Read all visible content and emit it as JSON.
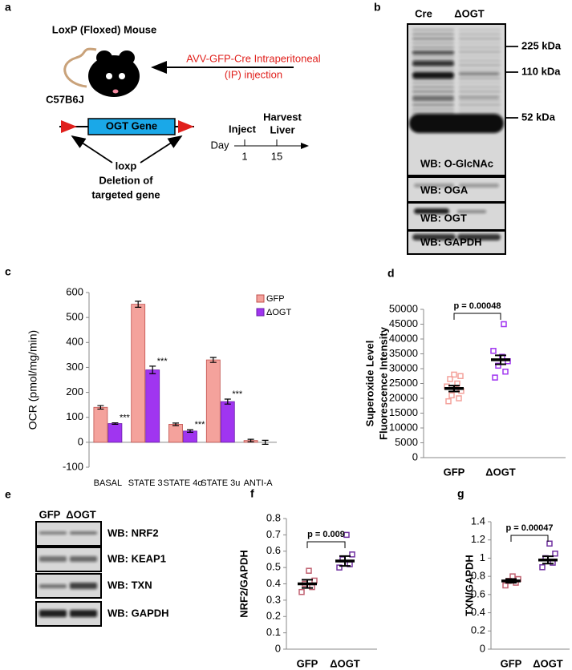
{
  "panel_labels": [
    "a",
    "b",
    "c",
    "d",
    "e",
    "f",
    "g"
  ],
  "diagram": {
    "title": "LoxP (Floxed) Mouse",
    "injection": [
      "AVV-GFP-Cre Intraperitoneal",
      "(IP) injection"
    ],
    "strain": "C57B6J",
    "gene": "OGT Gene",
    "loxp": "loxp",
    "deletion": [
      "Deletion of",
      "targeted gene"
    ],
    "timeline": {
      "inject": "Inject",
      "harvest": [
        "Harvest",
        "Liver"
      ],
      "day": "Day",
      "days": [
        "1",
        "15"
      ]
    }
  },
  "blot_b": {
    "columns": [
      "Cre",
      "ΔOGT"
    ],
    "markers": [
      "225 kDa",
      "110 kDa",
      "52 kDa"
    ],
    "labels": [
      "WB: O-GlcNAc",
      "WB: OGA",
      "WB: OGT",
      "WB: GAPDH"
    ]
  },
  "blot_e": {
    "columns": [
      "GFP",
      "ΔOGT"
    ],
    "labels": [
      "WB: NRF2",
      "WB: KEAP1",
      "WB: TXN",
      "WB: GAPDH"
    ]
  },
  "chart_data": [
    {
      "type": "bar",
      "ylabel": "OCR (pmol/mg/min)",
      "categories": [
        "BASAL",
        "STATE 3",
        "STATE 4o",
        "STATE 3u",
        "ANTI-A"
      ],
      "series": [
        {
          "name": "GFP",
          "color": "#f4a29c",
          "values": [
            140,
            553,
            72,
            330,
            7
          ],
          "errors": [
            7,
            12,
            5,
            10,
            5
          ]
        },
        {
          "name": "ΔOGT",
          "color": "#a035f0",
          "values": [
            75,
            290,
            45,
            163,
            0
          ],
          "errors": [
            3,
            15,
            5,
            10,
            8
          ],
          "significance": [
            "***",
            "***",
            "***",
            "***",
            null
          ]
        }
      ],
      "ylim": [
        -100,
        600
      ],
      "yticks": [
        -100,
        0,
        100,
        200,
        300,
        400,
        500,
        600
      ]
    },
    {
      "type": "strip",
      "ylabel": [
        "Superoxide Level",
        "Fluorescence Intensity"
      ],
      "categories": [
        "GFP",
        "ΔOGT"
      ],
      "colors": [
        "#f4a29c",
        "#a035f0"
      ],
      "points": [
        [
          19000,
          20000,
          21000,
          22500,
          23000,
          24000,
          25000,
          26500,
          27500,
          28000
        ],
        [
          27000,
          29000,
          31000,
          32500,
          34000,
          36000,
          45000
        ]
      ],
      "means": [
        23300,
        33000
      ],
      "errors": [
        1000,
        1500
      ],
      "annotation": "p = 0.00048",
      "ylim": [
        0,
        50000
      ],
      "yticks": [
        0,
        5000,
        10000,
        15000,
        20000,
        25000,
        30000,
        35000,
        40000,
        45000,
        50000
      ]
    },
    {
      "type": "strip",
      "ylabel": [
        "NRF2/GAPDH"
      ],
      "categories": [
        "GFP",
        "ΔOGT"
      ],
      "colors": [
        "#c06070",
        "#7030a0"
      ],
      "points": [
        [
          0.35,
          0.38,
          0.4,
          0.42,
          0.48
        ],
        [
          0.5,
          0.52,
          0.55,
          0.58,
          0.7
        ]
      ],
      "means": [
        0.4,
        0.54
      ],
      "errors": [
        0.025,
        0.03
      ],
      "annotation": "p = 0.009",
      "ylim": [
        0,
        0.8
      ],
      "yticks": [
        0,
        0.1,
        0.2,
        0.3,
        0.4,
        0.5,
        0.6,
        0.7,
        0.8
      ]
    },
    {
      "type": "strip",
      "ylabel": [
        "TXN/GAPDH"
      ],
      "categories": [
        "GFP",
        "ΔOGT"
      ],
      "colors": [
        "#c06070",
        "#7030a0"
      ],
      "points": [
        [
          0.7,
          0.73,
          0.75,
          0.77,
          0.8
        ],
        [
          0.9,
          0.95,
          1.0,
          1.05,
          1.16
        ]
      ],
      "means": [
        0.75,
        0.98
      ],
      "errors": [
        0.02,
        0.04
      ],
      "annotation": "p = 0.00047",
      "ylim": [
        0,
        1.4
      ],
      "yticks": [
        0,
        0.2,
        0.4,
        0.6,
        0.8,
        1,
        1.2,
        1.4
      ]
    }
  ]
}
